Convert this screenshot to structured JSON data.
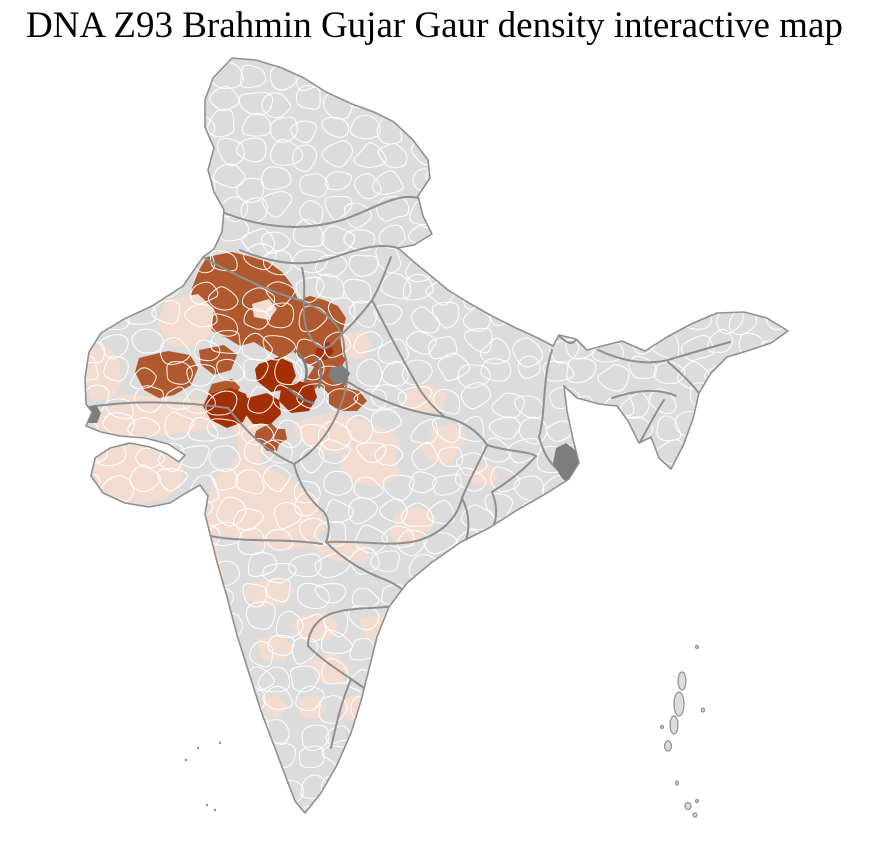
{
  "title": "DNA Z93 Brahmin Gujar Gaur density interactive map",
  "map": {
    "aria_label": "India district-level choropleth map of Z93 Brahmin Gujar Gaur density",
    "region_shown": "India",
    "admin_level": "district",
    "sea_color": "#ffffff",
    "palette": {
      "no_data": "#dcdcdc",
      "density_low": "#f2dcd0",
      "density_medium": "#b0582e",
      "density_high": "#a33005",
      "district_border": "#ffffff",
      "state_border": "#8f8f8f",
      "coast_border": "#909090",
      "dense_border_cluster": "#7d7d7d"
    },
    "density_classes": [
      {
        "level": "no-data",
        "color": "#dcdcdc"
      },
      {
        "level": "low",
        "color": "#f2dcd0"
      },
      {
        "level": "medium",
        "color": "#b0582e"
      },
      {
        "level": "high",
        "color": "#a33005"
      }
    ],
    "hotspot_description": "high-density cluster in northwest India (Rajasthan / Haryana / Delhi / west Uttar Pradesh), low-density scatter across Gujarat, Madhya Pradesh and the southern peninsula"
  }
}
